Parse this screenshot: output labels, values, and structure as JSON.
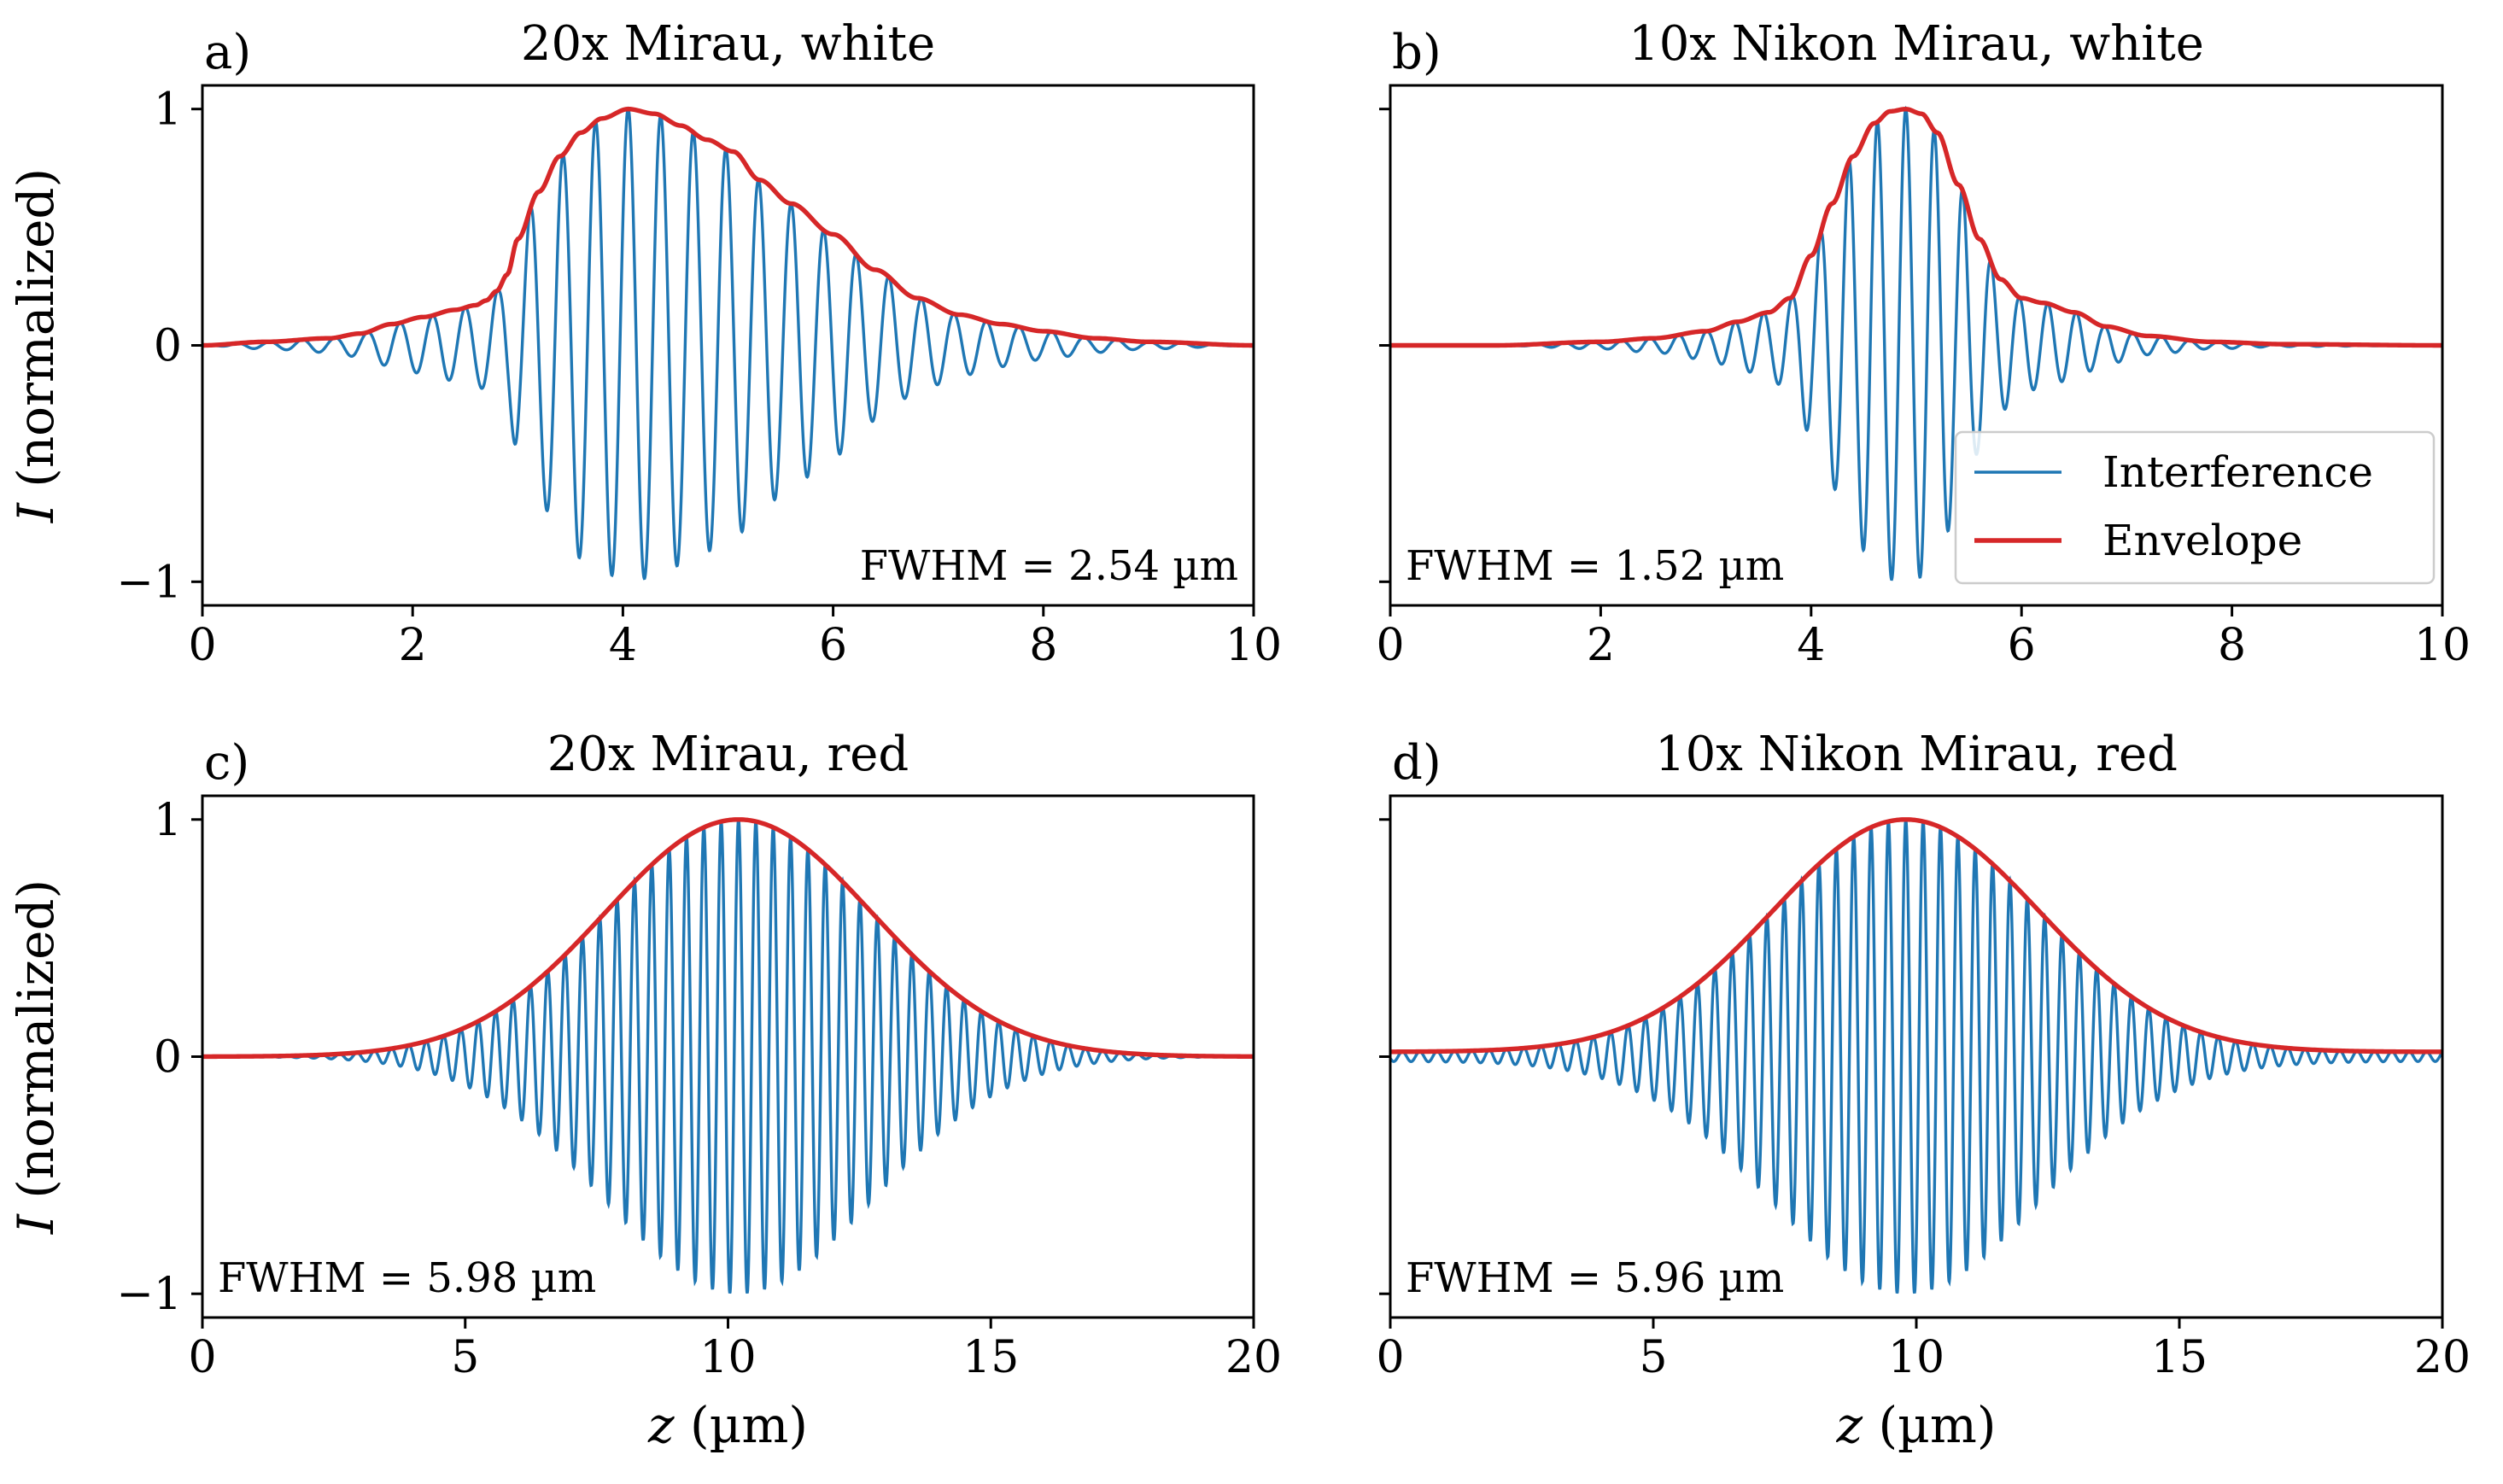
{
  "colors": {
    "interference": "#1f77b4",
    "envelope": "#d62728"
  },
  "chart_data": [
    {
      "type": "line",
      "label": "a)",
      "title": "20x Mirau, white",
      "xlabel": "",
      "ylabel_italic": "I",
      "ylabel_rest": " (normalized)",
      "xlim": [
        0,
        10
      ],
      "ylim": [
        -1.1,
        1.1
      ],
      "xticks": [
        0,
        2,
        4,
        6,
        8,
        10
      ],
      "xtick_labels": [
        "0",
        "2",
        "4",
        "6",
        "8",
        "10"
      ],
      "yticks": [
        -1,
        0,
        1
      ],
      "ytick_labels": [
        "−1",
        "0",
        "1"
      ],
      "fwhm_text": "FWHM = 2.54 µm",
      "fwhm_pos": "bottom-right",
      "legend": null,
      "period": 0.31,
      "peak_z": 4.05,
      "series": [
        {
          "name": "Interference",
          "role": "interference"
        },
        {
          "name": "Envelope",
          "role": "envelope",
          "x": [
            0,
            0.6,
            1.2,
            1.5,
            1.8,
            2.1,
            2.4,
            2.6,
            2.7,
            2.8,
            2.9,
            3.0,
            3.2,
            3.4,
            3.6,
            3.8,
            4.05,
            4.3,
            4.55,
            4.8,
            5.05,
            5.3,
            5.6,
            6.0,
            6.4,
            6.8,
            7.2,
            7.6,
            8.0,
            8.5,
            9.0,
            10.0
          ],
          "y": [
            0.0,
            0.015,
            0.03,
            0.05,
            0.09,
            0.12,
            0.15,
            0.17,
            0.19,
            0.23,
            0.3,
            0.45,
            0.65,
            0.8,
            0.9,
            0.96,
            1.0,
            0.98,
            0.93,
            0.87,
            0.82,
            0.7,
            0.6,
            0.47,
            0.32,
            0.2,
            0.13,
            0.09,
            0.06,
            0.03,
            0.015,
            0.0
          ]
        }
      ]
    },
    {
      "type": "line",
      "label": "b)",
      "title": "10x Nikon Mirau, white",
      "xlabel": "",
      "ylabel_italic": "",
      "ylabel_rest": "",
      "xlim": [
        0,
        10
      ],
      "ylim": [
        -1.1,
        1.1
      ],
      "xticks": [
        0,
        2,
        4,
        6,
        8,
        10
      ],
      "xtick_labels": [
        "0",
        "2",
        "4",
        "6",
        "8",
        "10"
      ],
      "yticks": [
        -1,
        0,
        1
      ],
      "ytick_labels": [
        "",
        "",
        ""
      ],
      "fwhm_text": "FWHM = 1.52 µm",
      "fwhm_pos": "bottom-left",
      "legend": {
        "position": "lower-right",
        "entries": [
          "Interference",
          "Envelope"
        ]
      },
      "period": 0.27,
      "peak_z": 4.9,
      "series": [
        {
          "name": "Interference",
          "role": "interference"
        },
        {
          "name": "Envelope",
          "role": "envelope",
          "x": [
            0,
            1.0,
            2.0,
            2.5,
            3.0,
            3.3,
            3.6,
            3.8,
            4.0,
            4.2,
            4.4,
            4.6,
            4.75,
            4.9,
            5.05,
            5.2,
            5.4,
            5.6,
            5.8,
            6.0,
            6.2,
            6.5,
            6.8,
            7.2,
            7.8,
            8.5,
            10.0
          ],
          "y": [
            0.0,
            0.0,
            0.015,
            0.03,
            0.06,
            0.1,
            0.14,
            0.2,
            0.38,
            0.6,
            0.8,
            0.94,
            0.99,
            1.0,
            0.98,
            0.9,
            0.68,
            0.45,
            0.28,
            0.2,
            0.18,
            0.14,
            0.08,
            0.04,
            0.015,
            0.005,
            0.0
          ]
        }
      ]
    },
    {
      "type": "line",
      "label": "c)",
      "title": "20x Mirau, red",
      "xlabel_italic": "z",
      "xlabel_rest": " (µm)",
      "ylabel_italic": "I",
      "ylabel_rest": " (normalized)",
      "xlim": [
        0,
        20
      ],
      "ylim": [
        -1.1,
        1.1
      ],
      "xticks": [
        0,
        5,
        10,
        15,
        20
      ],
      "xtick_labels": [
        "0",
        "5",
        "10",
        "15",
        "20"
      ],
      "yticks": [
        -1,
        0,
        1
      ],
      "ytick_labels": [
        "−1",
        "0",
        "1"
      ],
      "fwhm_text": "FWHM = 5.98 µm",
      "fwhm_pos": "bottom-left",
      "legend": null,
      "period": 0.33,
      "peak_z": 10.2,
      "series": [
        {
          "name": "Interference",
          "role": "interference"
        },
        {
          "name": "Envelope",
          "role": "envelope",
          "gaussian_fwhm": 5.98
        }
      ]
    },
    {
      "type": "line",
      "label": "d)",
      "title": "10x Nikon Mirau, red",
      "xlabel_italic": "z",
      "xlabel_rest": " (µm)",
      "ylabel_italic": "",
      "ylabel_rest": "",
      "xlim": [
        0,
        20
      ],
      "ylim": [
        -1.1,
        1.1
      ],
      "xticks": [
        0,
        5,
        10,
        15,
        20
      ],
      "xtick_labels": [
        "0",
        "5",
        "10",
        "15",
        "20"
      ],
      "yticks": [
        -1,
        0,
        1
      ],
      "ytick_labels": [
        "",
        "",
        ""
      ],
      "fwhm_text": "FWHM = 5.96 µm",
      "fwhm_pos": "bottom-left",
      "legend": null,
      "period": 0.33,
      "peak_z": 9.8,
      "series": [
        {
          "name": "Interference",
          "role": "interference"
        },
        {
          "name": "Envelope",
          "role": "envelope",
          "gaussian_fwhm": 5.96,
          "floor": 0.02
        }
      ]
    }
  ]
}
